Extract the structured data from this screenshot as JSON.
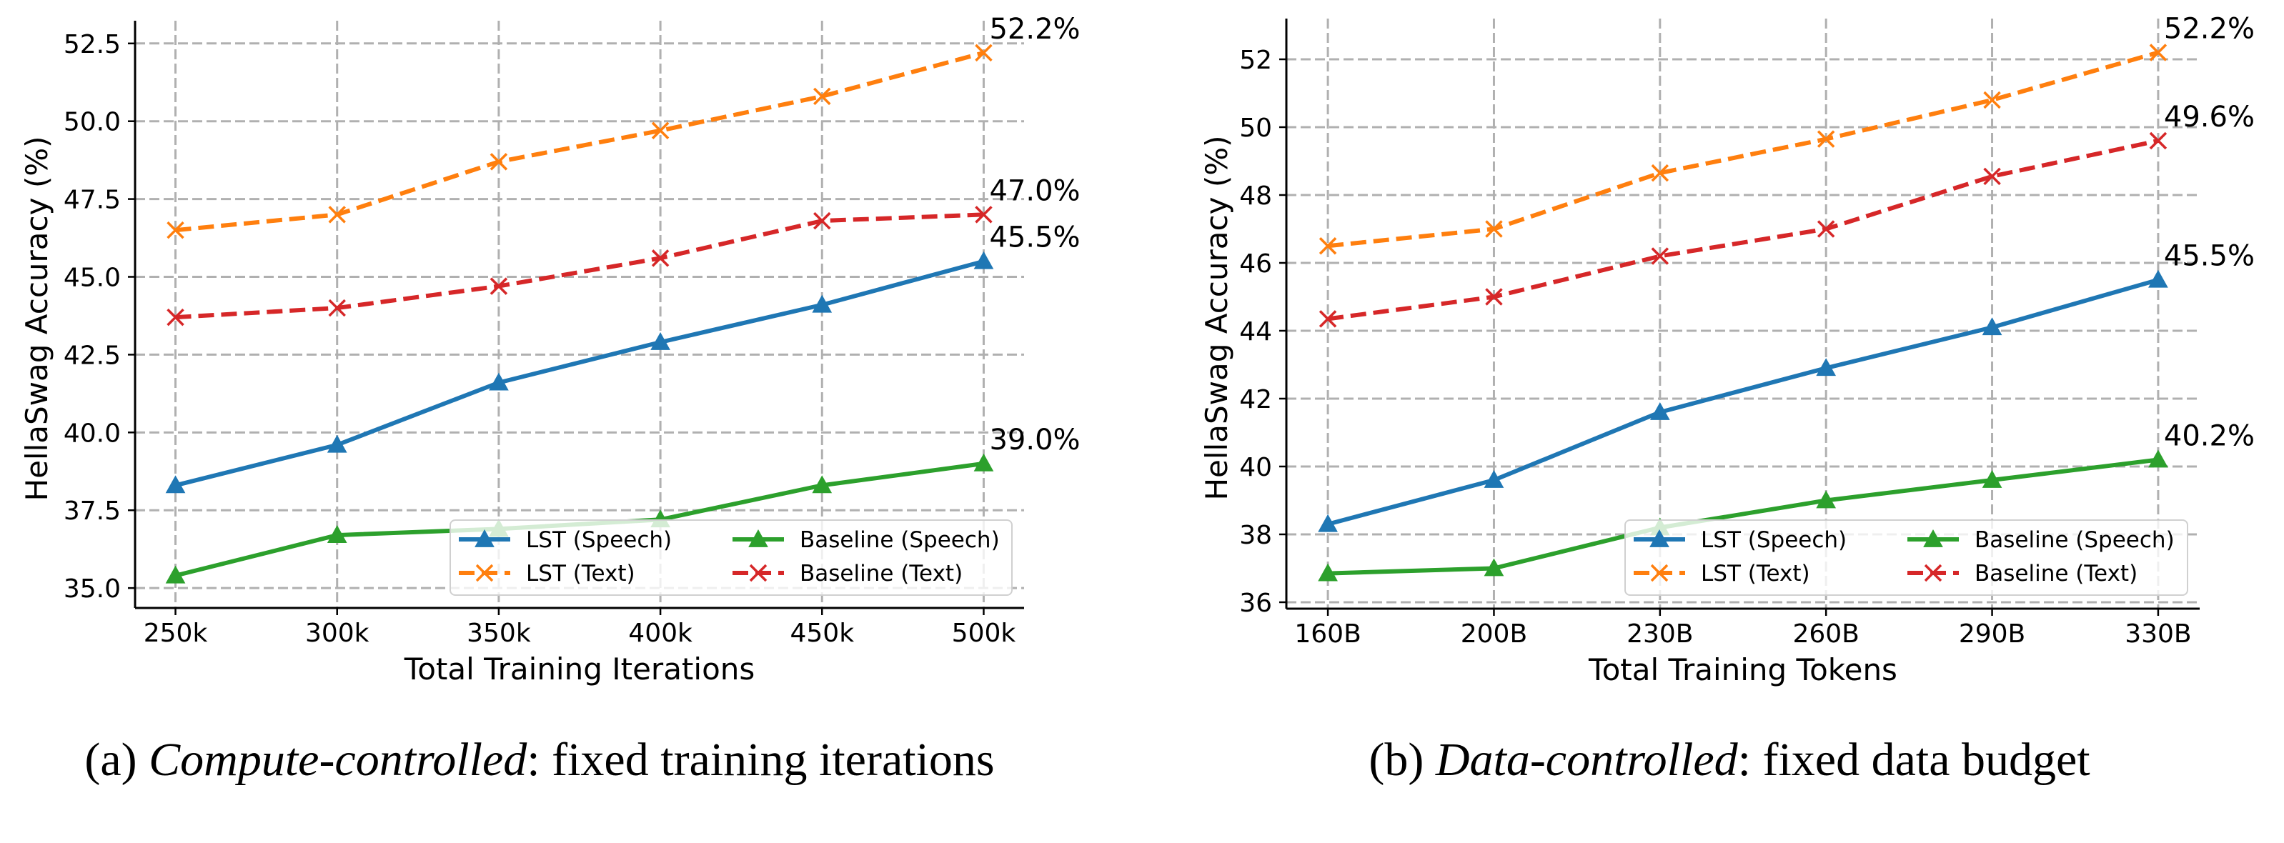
{
  "chart_data": [
    {
      "type": "line",
      "id": "compute-controlled",
      "caption": {
        "prefix": "(a) ",
        "italic": "Compute-controlled",
        "suffix": ": fixed training iterations"
      },
      "xlabel": "Total Training Iterations",
      "ylabel": "HellaSwag Accuracy (%)",
      "x": [
        250,
        300,
        350,
        400,
        450,
        500
      ],
      "x_tick_labels": [
        "250k",
        "300k",
        "350k",
        "400k",
        "450k",
        "500k"
      ],
      "xlim": [
        237.5,
        512.5
      ],
      "y_ticks": [
        35.0,
        37.5,
        40.0,
        42.5,
        45.0,
        47.5,
        50.0,
        52.5
      ],
      "y_tick_labels": [
        "35.0",
        "37.5",
        "40.0",
        "42.5",
        "45.0",
        "47.5",
        "50.0",
        "52.5"
      ],
      "ylim": [
        34.36,
        53.23
      ],
      "grid": true,
      "legend": {
        "placement": "lower-right",
        "columns": 2
      },
      "series": [
        {
          "name": "LST (Speech)",
          "color": "#1f77b4",
          "style": "solid",
          "marker": "triangle",
          "values": [
            38.3,
            39.6,
            41.6,
            42.9,
            44.1,
            45.5
          ],
          "end_label": "45.5%"
        },
        {
          "name": "LST (Text)",
          "color": "#ff7f0e",
          "style": "dashed",
          "marker": "x",
          "values": [
            46.5,
            47.0,
            48.7,
            49.7,
            50.8,
            52.2
          ],
          "end_label": "52.2%"
        },
        {
          "name": "Baseline (Speech)",
          "color": "#2ca02c",
          "style": "solid",
          "marker": "triangle",
          "values": [
            35.4,
            36.7,
            36.9,
            37.2,
            38.3,
            39.0
          ],
          "end_label": "39.0%"
        },
        {
          "name": "Baseline (Text)",
          "color": "#d62728",
          "style": "dashed",
          "marker": "x",
          "values": [
            43.7,
            44.0,
            44.7,
            45.6,
            46.8,
            47.0
          ],
          "end_label": "47.0%"
        }
      ]
    },
    {
      "type": "line",
      "id": "data-controlled",
      "caption": {
        "prefix": "(b) ",
        "italic": "Data-controlled",
        "suffix": ": fixed data budget"
      },
      "xlabel": "Total Training Tokens",
      "ylabel": "HellaSwag Accuracy (%)",
      "x": [
        0,
        1,
        2,
        3,
        4,
        5
      ],
      "x_tick_labels": [
        "160B",
        "200B",
        "230B",
        "260B",
        "290B",
        "330B"
      ],
      "xlim": [
        -0.25,
        5.25
      ],
      "y_ticks": [
        36,
        38,
        40,
        42,
        44,
        46,
        48,
        50,
        52
      ],
      "y_tick_labels": [
        "36",
        "38",
        "40",
        "42",
        "44",
        "46",
        "48",
        "50",
        "52"
      ],
      "ylim": [
        35.81,
        53.2
      ],
      "grid": true,
      "legend": {
        "placement": "lower-right",
        "columns": 2
      },
      "series": [
        {
          "name": "LST (Speech)",
          "color": "#1f77b4",
          "style": "solid",
          "marker": "triangle",
          "values": [
            38.3,
            39.6,
            41.6,
            42.9,
            44.1,
            45.5
          ],
          "end_label": "45.5%"
        },
        {
          "name": "LST (Text)",
          "color": "#ff7f0e",
          "style": "dashed",
          "marker": "x",
          "values": [
            46.5,
            47.0,
            48.65,
            49.65,
            50.8,
            52.2
          ],
          "end_label": "52.2%"
        },
        {
          "name": "Baseline (Speech)",
          "color": "#2ca02c",
          "style": "solid",
          "marker": "triangle",
          "values": [
            36.85,
            37.0,
            38.2,
            39.0,
            39.6,
            40.2
          ],
          "end_label": "40.2%"
        },
        {
          "name": "Baseline (Text)",
          "color": "#d62728",
          "style": "dashed",
          "marker": "x",
          "values": [
            44.35,
            45.0,
            46.2,
            47.0,
            48.55,
            49.6
          ],
          "end_label": "49.6%"
        }
      ]
    }
  ]
}
